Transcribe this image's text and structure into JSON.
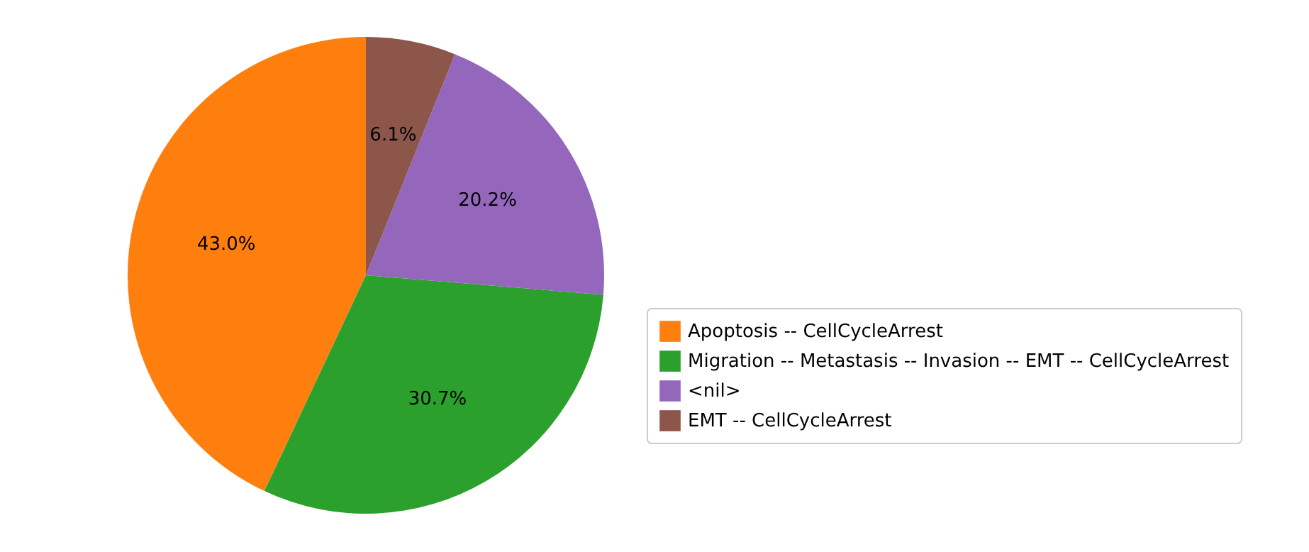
{
  "chart_data": {
    "type": "pie",
    "categories": [
      "Apoptosis -- CellCycleArrest",
      "Migration -- Metastasis -- Invasion -- EMT -- CellCycleArrest",
      "<nil>",
      "EMT -- CellCycleArrest"
    ],
    "values": [
      43.0,
      30.7,
      20.2,
      6.1
    ],
    "colors": [
      "#ff7f0e",
      "#2ca02c",
      "#9467bd",
      "#8c564b"
    ],
    "value_labels": [
      "43.0%",
      "30.7%",
      "20.2%",
      "6.1%"
    ],
    "legend": "right"
  }
}
